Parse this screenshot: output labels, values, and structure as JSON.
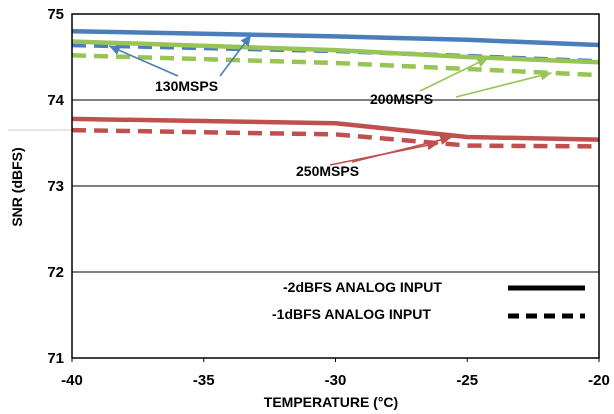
{
  "chart_data": {
    "type": "line",
    "xlabel": "TEMPERATURE (°C)",
    "ylabel": "SNR (dBFS)",
    "xlim": [
      -40,
      -20
    ],
    "ylim": [
      71,
      75
    ],
    "x_ticks": [
      -40,
      -35,
      -30,
      -25,
      -20
    ],
    "y_ticks": [
      71,
      72,
      73,
      74,
      75
    ],
    "x_tick_labels": [
      "-40",
      "-35",
      "-30",
      "-25",
      "-20"
    ],
    "y_tick_labels": [
      "71",
      "72",
      "73",
      "74",
      "75"
    ],
    "grid": "horizontal",
    "series": [
      {
        "name": "130MSPS -2dBFS",
        "color": "#4a7ebb",
        "dash": "solid",
        "x": [
          -40,
          -30,
          -25,
          -20
        ],
        "y": [
          74.8,
          74.74,
          74.7,
          74.64
        ]
      },
      {
        "name": "130MSPS -1dBFS",
        "color": "#4a7ebb",
        "dash": "dashed",
        "x": [
          -40,
          -30,
          -25,
          -20
        ],
        "y": [
          74.64,
          74.57,
          74.51,
          74.45
        ]
      },
      {
        "name": "200MSPS -2dBFS",
        "color": "#98c455",
        "dash": "solid",
        "x": [
          -40,
          -30,
          -25,
          -20
        ],
        "y": [
          74.68,
          74.58,
          74.5,
          74.44
        ]
      },
      {
        "name": "200MSPS -1dBFS",
        "color": "#98c455",
        "dash": "dashed",
        "x": [
          -40,
          -30,
          -25,
          -20
        ],
        "y": [
          74.52,
          74.43,
          74.36,
          74.29
        ]
      },
      {
        "name": "250MSPS -2dBFS",
        "color": "#c0504d",
        "dash": "solid",
        "x": [
          -40,
          -30,
          -25,
          -20
        ],
        "y": [
          73.78,
          73.73,
          73.57,
          73.54
        ]
      },
      {
        "name": "250MSPS -1dBFS",
        "color": "#c0504d",
        "dash": "dashed",
        "x": [
          -40,
          -30,
          -25,
          -20
        ],
        "y": [
          73.65,
          73.6,
          73.47,
          73.46
        ]
      }
    ],
    "annotations": [
      "130MSPS",
      "200MSPS",
      "250MSPS"
    ],
    "legend": [
      {
        "label": "-2dBFS ANALOG INPUT",
        "style": "solid"
      },
      {
        "label": "-1dBFS ANALOG INPUT",
        "style": "dashed"
      }
    ]
  }
}
